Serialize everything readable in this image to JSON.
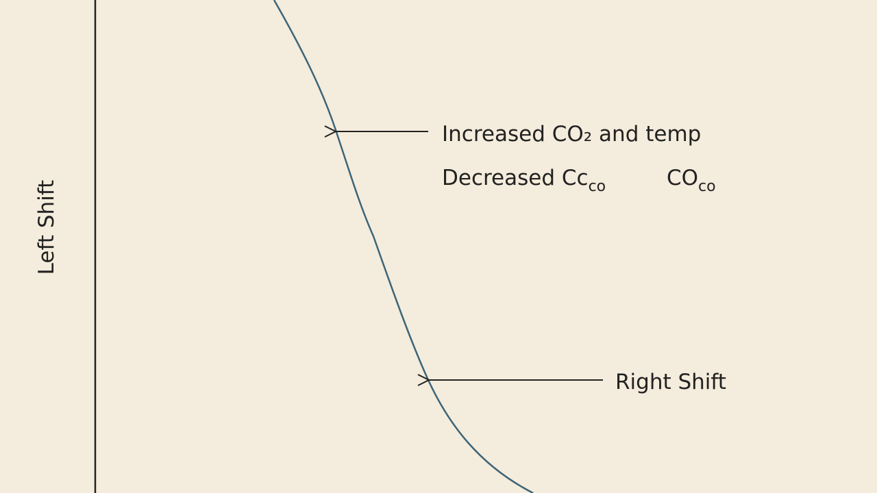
{
  "y_axis_label": "Left Shift",
  "annotations": [
    {
      "text": "Increased CO₂ and temp"
    },
    {
      "parts": [
        {
          "text": "Decreased Cc",
          "subscript": "co"
        },
        {
          "text": "CO",
          "subscript": "co"
        }
      ]
    },
    {
      "text": "Right Shift"
    }
  ]
}
